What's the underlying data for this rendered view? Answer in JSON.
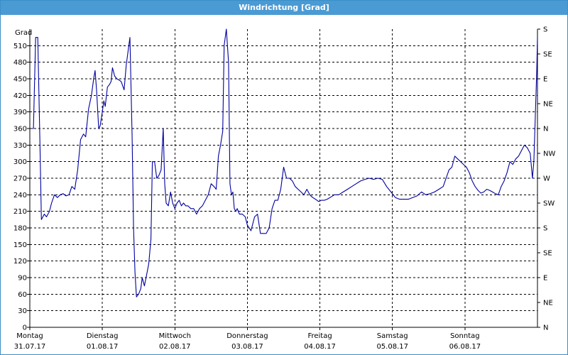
{
  "window": {
    "title": "Windrichtung [Grad]"
  },
  "chart_data": {
    "type": "line",
    "title": "Windrichtung [Grad]",
    "ylabel": "Grad",
    "ylim": [
      0,
      540
    ],
    "y_ticks": [
      0,
      30,
      60,
      90,
      120,
      150,
      180,
      210,
      240,
      270,
      300,
      330,
      360,
      390,
      420,
      450,
      480,
      510
    ],
    "right_axis_labels": [
      "N",
      "NE",
      "E",
      "SE",
      "S",
      "SW",
      "W",
      "NW",
      "N",
      "NE",
      "E",
      "SE",
      "S"
    ],
    "xlim": [
      0,
      7
    ],
    "x_ticks": [
      {
        "x": 0,
        "day": "Montag",
        "date": "31.07.17"
      },
      {
        "x": 1,
        "day": "Dienstag",
        "date": "01.08.17"
      },
      {
        "x": 2,
        "day": "Mittwoch",
        "date": "02.08.17"
      },
      {
        "x": 3,
        "day": "Donnerstag",
        "date": "03.08.17"
      },
      {
        "x": 4,
        "day": "Freitag",
        "date": "04.08.17"
      },
      {
        "x": 5,
        "day": "Samstag",
        "date": "05.08.17"
      },
      {
        "x": 6,
        "day": "Sonntag",
        "date": "06.08.17"
      }
    ],
    "grid": true,
    "series_color": "#0000a0",
    "series": [
      {
        "points": [
          [
            0.03,
            360
          ],
          [
            0.05,
            360
          ],
          [
            0.08,
            525
          ],
          [
            0.11,
            525
          ],
          [
            0.14,
            330
          ],
          [
            0.16,
            195
          ],
          [
            0.2,
            205
          ],
          [
            0.23,
            200
          ],
          [
            0.27,
            210
          ],
          [
            0.3,
            225
          ],
          [
            0.34,
            240
          ],
          [
            0.38,
            235
          ],
          [
            0.42,
            240
          ],
          [
            0.46,
            242
          ],
          [
            0.5,
            238
          ],
          [
            0.54,
            240
          ],
          [
            0.58,
            255
          ],
          [
            0.62,
            250
          ],
          [
            0.66,
            285
          ],
          [
            0.7,
            340
          ],
          [
            0.74,
            350
          ],
          [
            0.77,
            345
          ],
          [
            0.81,
            395
          ],
          [
            0.85,
            420
          ],
          [
            0.88,
            450
          ],
          [
            0.9,
            465
          ],
          [
            0.92,
            430
          ],
          [
            0.95,
            360
          ],
          [
            0.97,
            365
          ],
          [
            1.0,
            390
          ],
          [
            1.02,
            410
          ],
          [
            1.04,
            400
          ],
          [
            1.07,
            435
          ],
          [
            1.1,
            440
          ],
          [
            1.12,
            445
          ],
          [
            1.14,
            470
          ],
          [
            1.17,
            455
          ],
          [
            1.2,
            450
          ],
          [
            1.23,
            448
          ],
          [
            1.26,
            445
          ],
          [
            1.3,
            430
          ],
          [
            1.33,
            475
          ],
          [
            1.36,
            505
          ],
          [
            1.38,
            525
          ],
          [
            1.41,
            350
          ],
          [
            1.43,
            180
          ],
          [
            1.45,
            100
          ],
          [
            1.47,
            55
          ],
          [
            1.5,
            60
          ],
          [
            1.53,
            70
          ],
          [
            1.55,
            90
          ],
          [
            1.58,
            75
          ],
          [
            1.61,
            95
          ],
          [
            1.64,
            115
          ],
          [
            1.67,
            160
          ],
          [
            1.69,
            300
          ],
          [
            1.72,
            300
          ],
          [
            1.75,
            270
          ],
          [
            1.78,
            275
          ],
          [
            1.81,
            285
          ],
          [
            1.84,
            360
          ],
          [
            1.86,
            260
          ],
          [
            1.88,
            225
          ],
          [
            1.91,
            220
          ],
          [
            1.94,
            245
          ],
          [
            1.97,
            225
          ],
          [
            2.0,
            215
          ],
          [
            2.03,
            225
          ],
          [
            2.06,
            230
          ],
          [
            2.09,
            220
          ],
          [
            2.12,
            225
          ],
          [
            2.15,
            220
          ],
          [
            2.18,
            220
          ],
          [
            2.22,
            215
          ],
          [
            2.26,
            215
          ],
          [
            2.3,
            205
          ],
          [
            2.34,
            215
          ],
          [
            2.38,
            220
          ],
          [
            2.42,
            230
          ],
          [
            2.46,
            240
          ],
          [
            2.5,
            260
          ],
          [
            2.54,
            255
          ],
          [
            2.57,
            250
          ],
          [
            2.6,
            310
          ],
          [
            2.63,
            330
          ],
          [
            2.66,
            355
          ],
          [
            2.68,
            510
          ],
          [
            2.71,
            540
          ],
          [
            2.74,
            480
          ],
          [
            2.76,
            260
          ],
          [
            2.78,
            240
          ],
          [
            2.8,
            245
          ],
          [
            2.82,
            215
          ],
          [
            2.84,
            210
          ],
          [
            2.86,
            215
          ],
          [
            2.89,
            205
          ],
          [
            2.93,
            205
          ],
          [
            2.97,
            200
          ],
          [
            3.0,
            185
          ],
          [
            3.05,
            175
          ],
          [
            3.1,
            200
          ],
          [
            3.14,
            205
          ],
          [
            3.18,
            170
          ],
          [
            3.22,
            170
          ],
          [
            3.26,
            170
          ],
          [
            3.3,
            180
          ],
          [
            3.34,
            215
          ],
          [
            3.38,
            230
          ],
          [
            3.42,
            230
          ],
          [
            3.46,
            250
          ],
          [
            3.5,
            290
          ],
          [
            3.54,
            270
          ],
          [
            3.58,
            270
          ],
          [
            3.62,
            265
          ],
          [
            3.66,
            255
          ],
          [
            3.7,
            250
          ],
          [
            3.74,
            245
          ],
          [
            3.78,
            240
          ],
          [
            3.82,
            250
          ],
          [
            3.86,
            240
          ],
          [
            3.9,
            235
          ],
          [
            3.94,
            232
          ],
          [
            3.98,
            228
          ],
          [
            4.02,
            230
          ],
          [
            4.06,
            230
          ],
          [
            4.1,
            232
          ],
          [
            4.14,
            235
          ],
          [
            4.2,
            240
          ],
          [
            4.26,
            240
          ],
          [
            4.32,
            245
          ],
          [
            4.38,
            250
          ],
          [
            4.44,
            255
          ],
          [
            4.5,
            260
          ],
          [
            4.56,
            265
          ],
          [
            4.62,
            268
          ],
          [
            4.68,
            270
          ],
          [
            4.74,
            268
          ],
          [
            4.8,
            270
          ],
          [
            4.86,
            268
          ],
          [
            4.92,
            255
          ],
          [
            4.98,
            245
          ],
          [
            5.04,
            235
          ],
          [
            5.1,
            232
          ],
          [
            5.16,
            232
          ],
          [
            5.22,
            232
          ],
          [
            5.28,
            235
          ],
          [
            5.34,
            238
          ],
          [
            5.4,
            245
          ],
          [
            5.46,
            240
          ],
          [
            5.52,
            242
          ],
          [
            5.58,
            245
          ],
          [
            5.64,
            250
          ],
          [
            5.7,
            255
          ],
          [
            5.74,
            270
          ],
          [
            5.78,
            285
          ],
          [
            5.82,
            290
          ],
          [
            5.86,
            310
          ],
          [
            5.9,
            305
          ],
          [
            5.94,
            300
          ],
          [
            5.98,
            295
          ],
          [
            6.02,
            290
          ],
          [
            6.06,
            280
          ],
          [
            6.1,
            265
          ],
          [
            6.14,
            255
          ],
          [
            6.18,
            248
          ],
          [
            6.22,
            243
          ],
          [
            6.26,
            245
          ],
          [
            6.3,
            250
          ],
          [
            6.34,
            248
          ],
          [
            6.38,
            245
          ],
          [
            6.42,
            242
          ],
          [
            6.46,
            240
          ],
          [
            6.5,
            255
          ],
          [
            6.54,
            265
          ],
          [
            6.58,
            280
          ],
          [
            6.62,
            300
          ],
          [
            6.66,
            295
          ],
          [
            6.7,
            305
          ],
          [
            6.74,
            310
          ],
          [
            6.78,
            320
          ],
          [
            6.82,
            330
          ],
          [
            6.86,
            325
          ],
          [
            6.9,
            315
          ],
          [
            6.93,
            270
          ],
          [
            6.95,
            300
          ],
          [
            6.97,
            380
          ],
          [
            6.99,
            465
          ],
          [
            7.0,
            525
          ]
        ]
      }
    ]
  }
}
